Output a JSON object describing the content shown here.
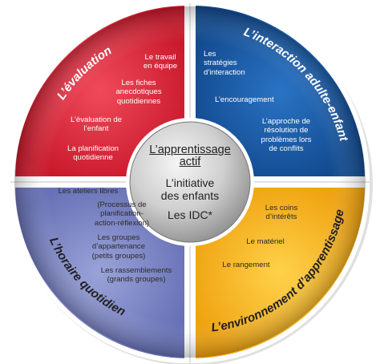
{
  "colors": {
    "red": "#e0283a",
    "blue": "#1a5ba8",
    "purple": "#7b86c8",
    "yellow": "#f5b321",
    "center": "#c9c9c9"
  },
  "center": {
    "line1": "L’apprentissage",
    "line2": "actif",
    "line3": "L’initiative",
    "line4": "des enfants",
    "line5": "Les IDC*"
  },
  "quadrants": {
    "evaluation": {
      "title": "L’évaluation",
      "items": [
        "Le travail\nen équipe",
        "Les fiches\nanecdotiques\nquotidiennes",
        "L’évaluation de\nl’enfant",
        "La planification\nquotidienne"
      ]
    },
    "interaction": {
      "title": "L’interaction adulte-enfant",
      "items": [
        "Les\nstratégies\nd’interaction",
        "L’encouragement",
        "L’approche de\nrésolution de\nproblèmes lors\nde conflits"
      ]
    },
    "horaire": {
      "title": "L’horaire quotidien",
      "items": [
        "Les ateliers libres",
        "(Processus de\nplanification-\naction-réflexion)",
        "Les groupes\nd’appartenance\n(petits groupes)",
        "Les rassemblements\n(grands groupes)"
      ]
    },
    "environnement": {
      "title": "L’environnement d’apprentissage",
      "items": [
        "Les coins\nd’intérêts",
        "Le matériel",
        "Le rangement"
      ]
    }
  }
}
